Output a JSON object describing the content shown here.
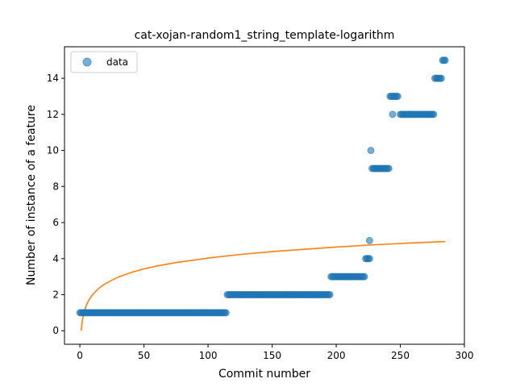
{
  "chart_data": {
    "type": "scatter",
    "title": "cat-xojan-random1_string_template-logarithm",
    "xlabel": "Commit number",
    "ylabel": "Number of instance of a feature",
    "xlim": [
      -12,
      300
    ],
    "ylim": [
      -0.75,
      15.75
    ],
    "xticks": [
      0,
      50,
      100,
      150,
      200,
      250,
      300
    ],
    "yticks": [
      0,
      2,
      4,
      6,
      8,
      10,
      12,
      14
    ],
    "grid": false,
    "legend": {
      "placement": "upper-left",
      "entries": [
        "data"
      ]
    },
    "colors": {
      "data": "#1f77b4",
      "fit": "#ff7f0e"
    },
    "series": [
      {
        "name": "data",
        "kind": "scatter",
        "segments": [
          {
            "x_from": 0,
            "x_to": 114,
            "y": 1
          },
          {
            "x_from": 115,
            "x_to": 195,
            "y": 2
          },
          {
            "x_from": 196,
            "x_to": 222,
            "y": 3
          },
          {
            "x_from": 223,
            "x_to": 226,
            "y": 4
          },
          {
            "x_from": 228,
            "x_to": 241,
            "y": 9
          },
          {
            "x_from": 242,
            "x_to": 248,
            "y": 13
          },
          {
            "x_from": 250,
            "x_to": 276,
            "y": 12
          },
          {
            "x_from": 277,
            "x_to": 282,
            "y": 14
          },
          {
            "x_from": 283,
            "x_to": 285,
            "y": 15
          }
        ],
        "points": [
          {
            "x": 226,
            "y": 5
          },
          {
            "x": 227,
            "y": 10
          },
          {
            "x": 244,
            "y": 12
          }
        ]
      },
      {
        "kind": "line",
        "model": "logarithmic",
        "x": [
          1,
          2,
          3,
          5,
          7,
          10,
          15,
          20,
          30,
          40,
          50,
          60,
          75,
          100,
          125,
          150,
          175,
          200,
          225,
          250,
          285
        ],
        "y": [
          0.0,
          0.6,
          0.96,
          1.41,
          1.71,
          2.01,
          2.37,
          2.62,
          2.98,
          3.23,
          3.43,
          3.59,
          3.78,
          4.03,
          4.23,
          4.39,
          4.52,
          4.64,
          4.75,
          4.84,
          4.95
        ]
      }
    ]
  }
}
